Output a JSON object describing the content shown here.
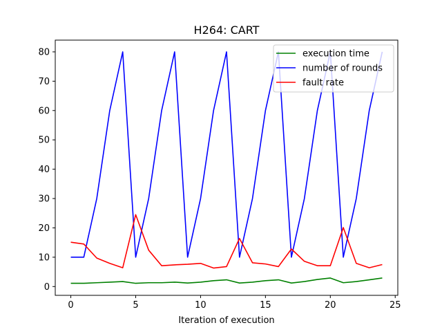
{
  "chart_data": {
    "type": "line",
    "title": "H264: CART",
    "xlabel": "Iteration of execution",
    "ylabel": "",
    "xlim": [
      -1.2,
      25.2
    ],
    "ylim": [
      -3,
      84
    ],
    "xticks": [
      0,
      5,
      10,
      15,
      20,
      25
    ],
    "yticks": [
      0,
      10,
      20,
      30,
      40,
      50,
      60,
      70,
      80
    ],
    "grid": false,
    "legend_position": "top-right",
    "x": [
      0,
      1,
      2,
      3,
      4,
      5,
      6,
      7,
      8,
      9,
      10,
      11,
      12,
      13,
      14,
      15,
      16,
      17,
      18,
      19,
      20,
      21,
      22,
      23,
      24
    ],
    "series": [
      {
        "name": "execution time",
        "color": "#008000",
        "values": [
          1.1,
          1.1,
          1.3,
          1.5,
          1.7,
          1.1,
          1.3,
          1.3,
          1.5,
          1.2,
          1.5,
          2.0,
          2.3,
          1.2,
          1.5,
          2.0,
          2.3,
          1.2,
          1.7,
          2.4,
          2.9,
          1.3,
          1.7,
          2.3,
          2.9
        ]
      },
      {
        "name": "number of rounds",
        "color": "#0000ff",
        "values": [
          10,
          10,
          30,
          60,
          80,
          10,
          30,
          60,
          80,
          10,
          30,
          60,
          80,
          10,
          30,
          60,
          80,
          10,
          30,
          60,
          80,
          10,
          30,
          60,
          80
        ]
      },
      {
        "name": "fault rate",
        "color": "#ff0000",
        "values": [
          15.1,
          14.5,
          9.7,
          7.9,
          6.4,
          24.5,
          12.4,
          7.1,
          7.4,
          7.6,
          7.9,
          6.3,
          6.8,
          16.4,
          8.1,
          7.7,
          6.8,
          12.8,
          8.6,
          7.1,
          7.1,
          20.1,
          7.9,
          6.4,
          7.5
        ]
      }
    ]
  }
}
